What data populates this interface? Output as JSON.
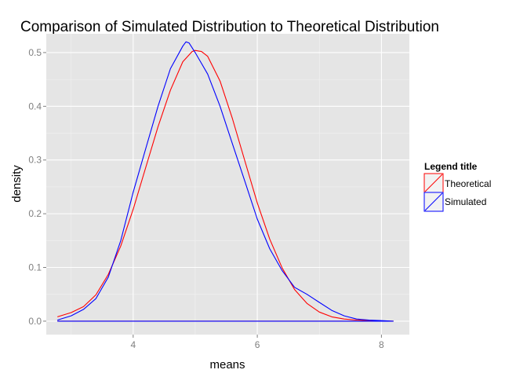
{
  "chart_data": {
    "type": "line",
    "title": "Comparison of Simulated Distribution to Theoretical Distribution",
    "xlabel": "means",
    "ylabel": "density",
    "xlim": [
      2.6,
      8.45
    ],
    "ylim": [
      -0.025,
      0.535
    ],
    "x_ticks": [
      4,
      6,
      8
    ],
    "y_ticks": [
      0.0,
      0.1,
      0.2,
      0.3,
      0.4,
      0.5
    ],
    "y_tick_labels": [
      "0.0",
      "0.1",
      "0.2",
      "0.3",
      "0.4",
      "0.5"
    ],
    "grid": true,
    "legend": {
      "title": "Legend title",
      "position": "right"
    },
    "series": [
      {
        "name": "Theoretical",
        "color": "#ff0000",
        "x": [
          2.78,
          3.0,
          3.2,
          3.4,
          3.6,
          3.8,
          4.0,
          4.2,
          4.4,
          4.6,
          4.8,
          4.95,
          5.0,
          5.1,
          5.2,
          5.4,
          5.6,
          5.8,
          6.0,
          6.2,
          6.4,
          6.6,
          6.8,
          7.0,
          7.2,
          7.4,
          7.6,
          7.8,
          8.0,
          8.19
        ],
        "y": [
          0.008,
          0.016,
          0.027,
          0.049,
          0.087,
          0.14,
          0.208,
          0.285,
          0.362,
          0.43,
          0.483,
          0.502,
          0.504,
          0.502,
          0.493,
          0.447,
          0.377,
          0.298,
          0.22,
          0.153,
          0.099,
          0.059,
          0.033,
          0.017,
          0.008,
          0.004,
          0.002,
          0.001,
          0.0005,
          0.0
        ]
      },
      {
        "name": "Simulated",
        "color": "#0000ff",
        "x": [
          2.78,
          3.0,
          3.2,
          3.4,
          3.6,
          3.8,
          4.0,
          4.2,
          4.4,
          4.6,
          4.8,
          4.85,
          4.9,
          5.0,
          5.2,
          5.4,
          5.6,
          5.8,
          6.0,
          6.2,
          6.4,
          6.6,
          6.8,
          7.0,
          7.2,
          7.4,
          7.6,
          7.8,
          8.0,
          8.19
        ],
        "y": [
          0.002,
          0.01,
          0.022,
          0.042,
          0.082,
          0.15,
          0.24,
          0.32,
          0.4,
          0.47,
          0.512,
          0.52,
          0.518,
          0.5,
          0.46,
          0.4,
          0.33,
          0.26,
          0.19,
          0.135,
          0.094,
          0.063,
          0.05,
          0.035,
          0.02,
          0.01,
          0.004,
          0.002,
          0.001,
          0.0
        ]
      }
    ]
  }
}
